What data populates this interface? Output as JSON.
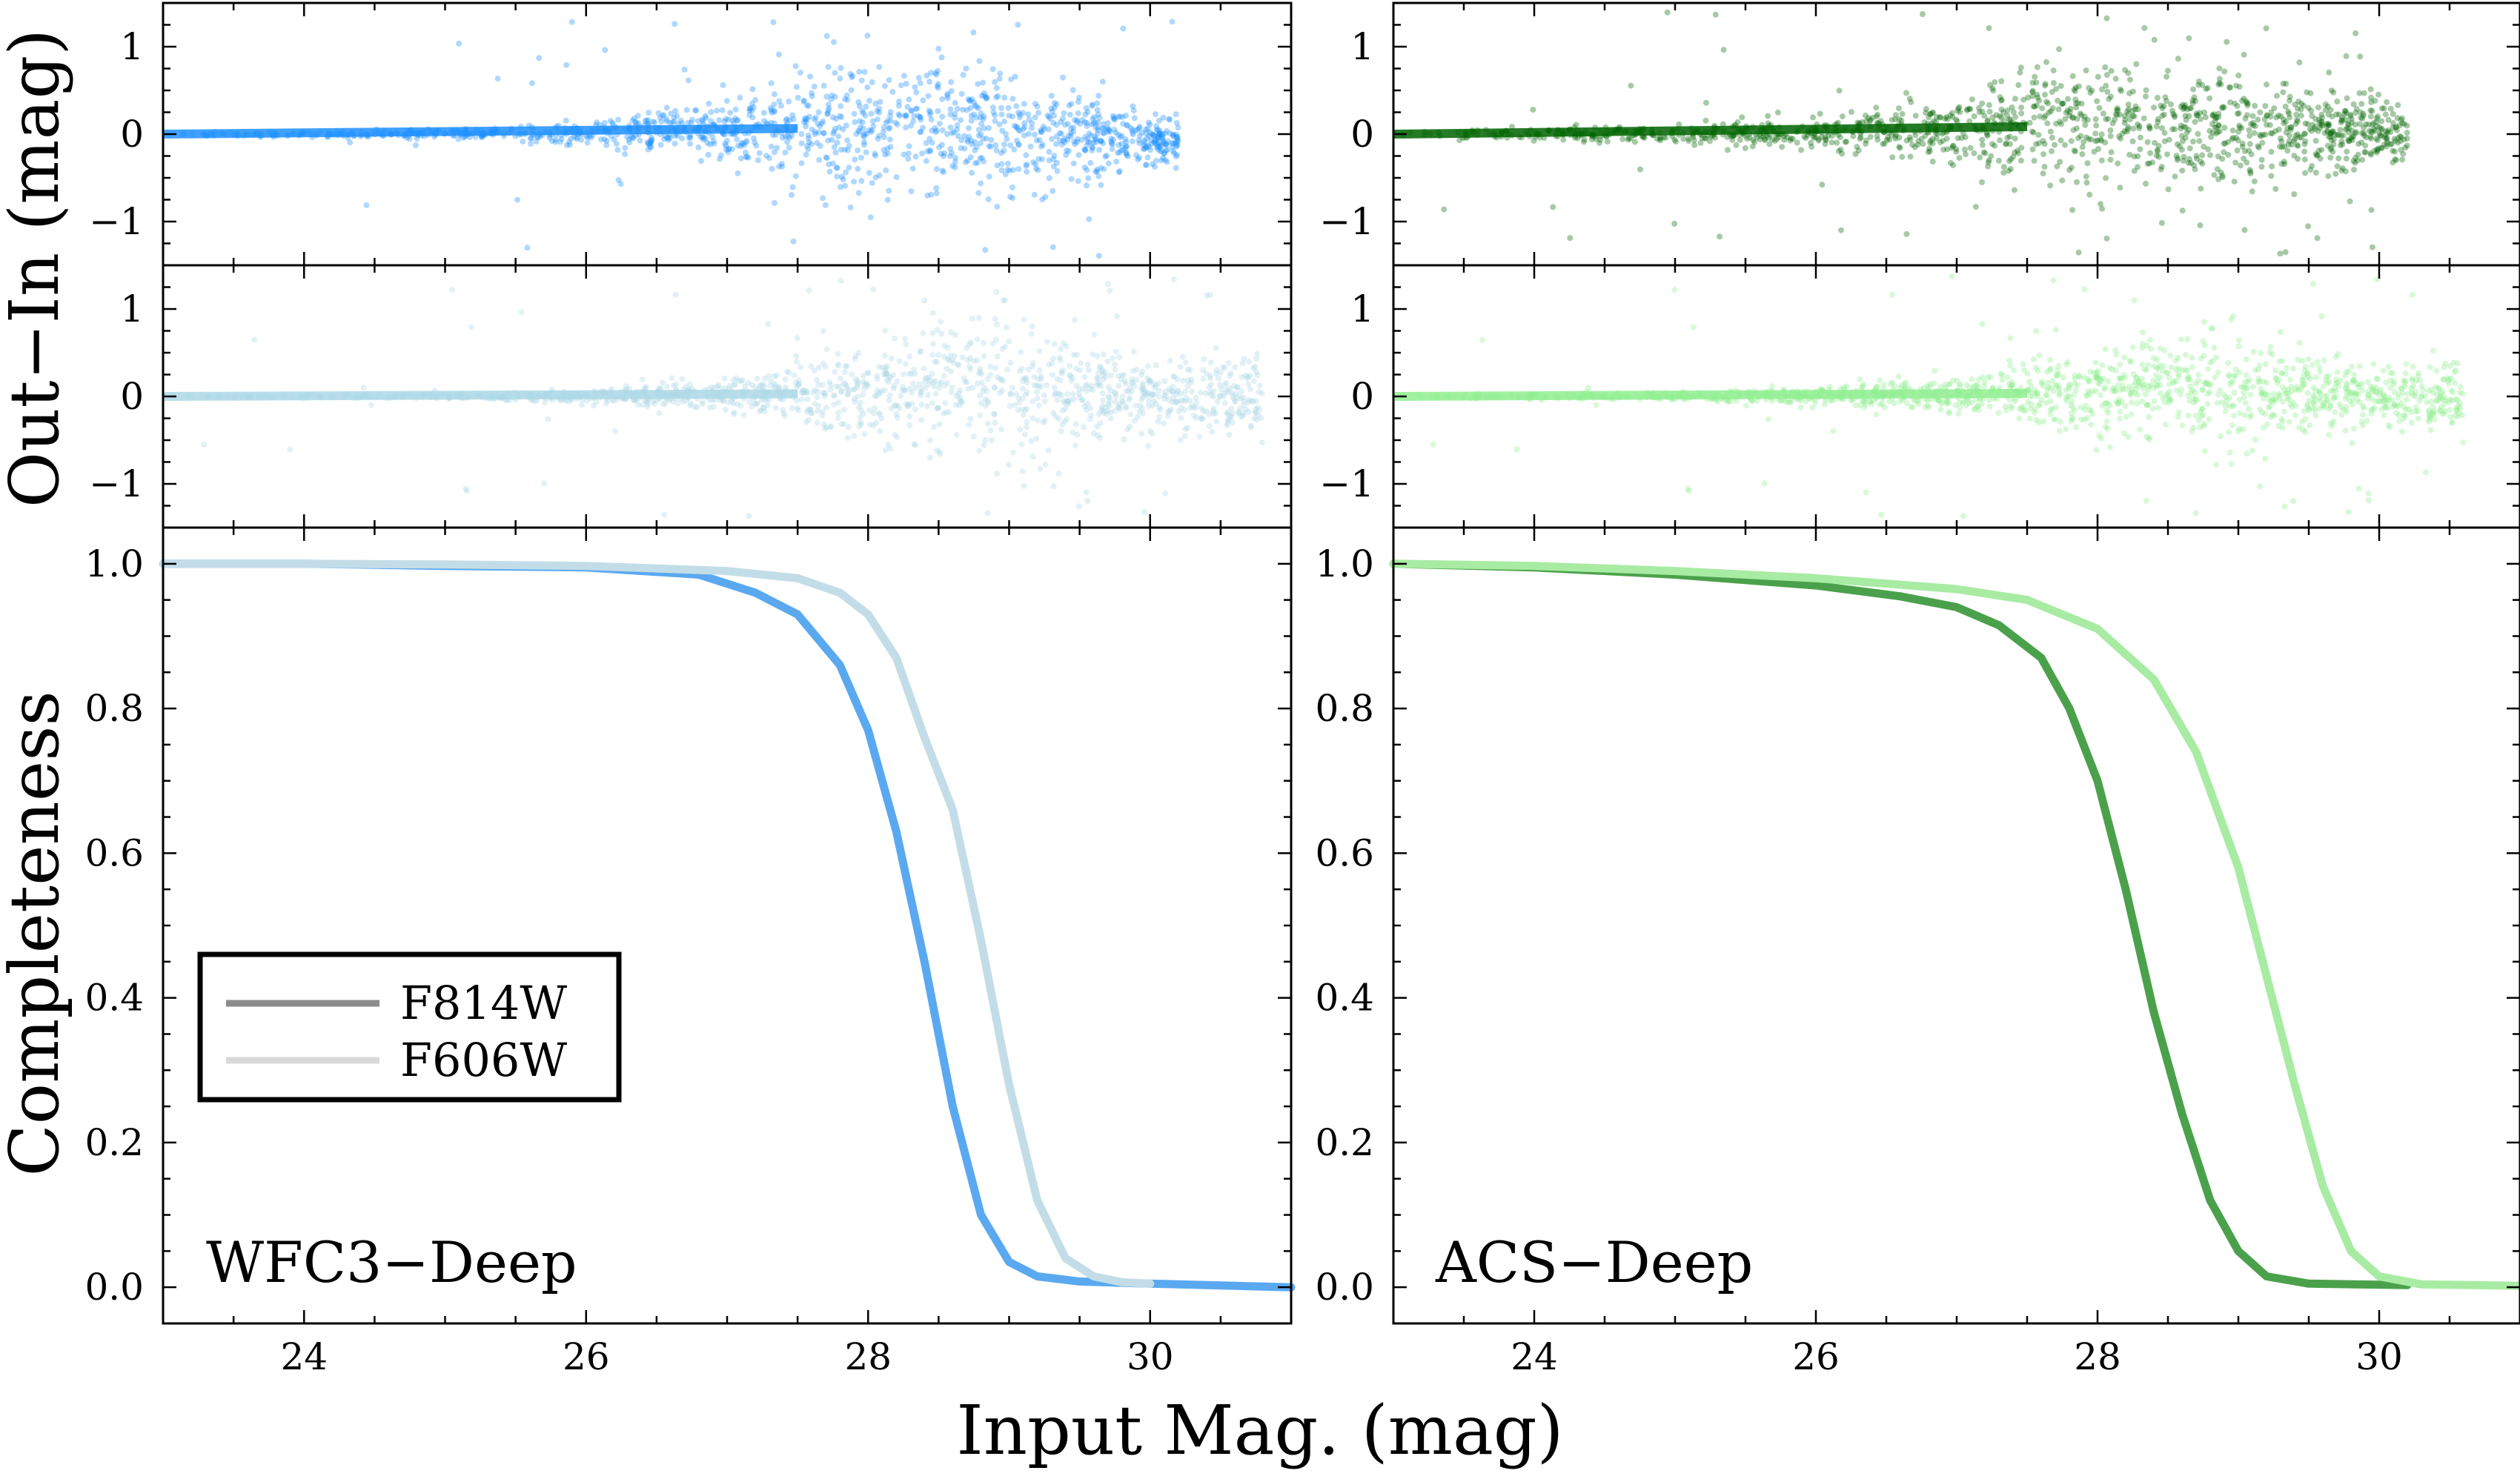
{
  "figure": {
    "xlabel": "Input Mag. (mag)",
    "ylabel_residual": "Out−In (mag)",
    "ylabel_completeness": "Completeness"
  },
  "legend": {
    "entries": [
      {
        "label": "F814W",
        "color": "#8c8c8c"
      },
      {
        "label": "F606W",
        "color": "#d9d9d9"
      }
    ]
  },
  "chart_data": [
    {
      "id": "wfc3-f814w-residual",
      "type": "scatter",
      "panel": "WFC3−Deep",
      "filter": "F814W",
      "color": "#1e90ff",
      "xlim": [
        23,
        31
      ],
      "ylim": [
        -1.5,
        1.5
      ],
      "yticks": [
        -1,
        0,
        1
      ],
      "xlabel": "Input Mag. (mag)",
      "ylabel": "Out−In (mag)",
      "envelope": {
        "x": [
          23,
          24,
          25,
          26,
          27,
          28,
          29,
          30
        ],
        "spread": [
          0.02,
          0.03,
          0.05,
          0.12,
          0.3,
          0.75,
          0.6,
          0.25
        ],
        "bias": [
          0,
          0,
          0,
          0.01,
          0.03,
          0.1,
          0.05,
          -0.1
        ]
      },
      "xmax_points": 30.2
    },
    {
      "id": "wfc3-f606w-residual",
      "type": "scatter",
      "panel": "WFC3−Deep",
      "filter": "F606W",
      "color": "#add8e6",
      "xlim": [
        23,
        31
      ],
      "ylim": [
        -1.5,
        1.5
      ],
      "yticks": [
        -1,
        0,
        1
      ],
      "xlabel": "Input Mag. (mag)",
      "ylabel": "Out−In (mag)",
      "envelope": {
        "x": [
          23,
          24,
          25,
          26,
          27,
          28,
          29,
          30
        ],
        "spread": [
          0.01,
          0.02,
          0.03,
          0.07,
          0.18,
          0.45,
          0.75,
          0.4
        ],
        "bias": [
          0,
          0,
          0,
          0,
          0.01,
          0.05,
          0.08,
          0
        ]
      },
      "xmax_points": 30.8
    },
    {
      "id": "acs-f814w-residual",
      "type": "scatter",
      "panel": "ACS−Deep",
      "filter": "F814W",
      "color": "#006400",
      "xlim": [
        23,
        31
      ],
      "ylim": [
        -1.5,
        1.5
      ],
      "yticks": [
        -1,
        0,
        1
      ],
      "xlabel": "Input Mag. (mag)",
      "ylabel": "Out−In (mag)",
      "envelope": {
        "x": [
          23,
          24,
          25,
          26,
          27,
          28,
          29,
          30
        ],
        "spread": [
          0.04,
          0.06,
          0.1,
          0.18,
          0.35,
          0.7,
          0.6,
          0.3
        ],
        "bias": [
          0,
          0,
          0,
          0.02,
          0.05,
          0.12,
          0.08,
          0
        ]
      },
      "xmax_points": 30.2
    },
    {
      "id": "acs-f606w-residual",
      "type": "scatter",
      "panel": "ACS−Deep",
      "filter": "F606W",
      "color": "#90ee90",
      "xlim": [
        23,
        31
      ],
      "ylim": [
        -1.5,
        1.5
      ],
      "yticks": [
        -1,
        0,
        1
      ],
      "xlabel": "Input Mag. (mag)",
      "ylabel": "Out−In (mag)",
      "envelope": {
        "x": [
          23,
          24,
          25,
          26,
          27,
          28,
          29,
          30
        ],
        "spread": [
          0.02,
          0.03,
          0.05,
          0.1,
          0.2,
          0.4,
          0.55,
          0.35
        ],
        "bias": [
          0,
          0,
          0,
          0.01,
          0.02,
          0.05,
          0.06,
          0
        ]
      },
      "xmax_points": 30.6
    },
    {
      "id": "wfc3-completeness",
      "type": "line",
      "panel": "WFC3−Deep",
      "xlabel": "Input Mag. (mag)",
      "ylabel": "Completeness",
      "xlim": [
        23,
        31
      ],
      "ylim": [
        -0.05,
        1.05
      ],
      "xticks": [
        24,
        26,
        28,
        30
      ],
      "yticks": [
        0.0,
        0.2,
        0.4,
        0.6,
        0.8,
        1.0
      ],
      "series": [
        {
          "name": "F814W",
          "color": "#5aa9f0",
          "x": [
            23.0,
            24.0,
            25.0,
            26.0,
            26.8,
            27.2,
            27.5,
            27.8,
            28.0,
            28.2,
            28.4,
            28.6,
            28.8,
            29.0,
            29.2,
            29.5,
            30.0,
            31.0
          ],
          "y": [
            1.0,
            1.0,
            0.997,
            0.995,
            0.985,
            0.96,
            0.93,
            0.86,
            0.77,
            0.63,
            0.45,
            0.25,
            0.1,
            0.035,
            0.015,
            0.008,
            0.005,
            0.0
          ]
        },
        {
          "name": "F606W",
          "color": "#c3dde8",
          "x": [
            23.0,
            24.0,
            25.0,
            26.0,
            27.0,
            27.5,
            27.8,
            28.0,
            28.2,
            28.4,
            28.6,
            28.8,
            29.0,
            29.2,
            29.4,
            29.6,
            29.8,
            30.0
          ],
          "y": [
            1.0,
            1.0,
            0.999,
            0.997,
            0.99,
            0.98,
            0.96,
            0.93,
            0.87,
            0.76,
            0.66,
            0.48,
            0.28,
            0.12,
            0.04,
            0.015,
            0.007,
            0.005
          ]
        }
      ],
      "annotation": "WFC3−Deep"
    },
    {
      "id": "acs-completeness",
      "type": "line",
      "panel": "ACS−Deep",
      "xlabel": "Input Mag. (mag)",
      "ylabel": "Completeness",
      "xlim": [
        23,
        31
      ],
      "ylim": [
        -0.05,
        1.05
      ],
      "xticks": [
        24,
        26,
        28,
        30
      ],
      "yticks": [
        0.0,
        0.2,
        0.4,
        0.6,
        0.8,
        1.0
      ],
      "series": [
        {
          "name": "F814W",
          "color": "#4ba14b",
          "x": [
            23.0,
            24.0,
            25.0,
            26.0,
            26.6,
            27.0,
            27.3,
            27.6,
            27.8,
            28.0,
            28.2,
            28.4,
            28.6,
            28.8,
            29.0,
            29.2,
            29.5,
            30.2
          ],
          "y": [
            1.0,
            0.995,
            0.985,
            0.97,
            0.955,
            0.94,
            0.915,
            0.87,
            0.8,
            0.7,
            0.55,
            0.38,
            0.24,
            0.12,
            0.05,
            0.015,
            0.005,
            0.003
          ]
        },
        {
          "name": "F606W",
          "color": "#a8eba3",
          "x": [
            23.0,
            24.0,
            25.0,
            26.0,
            27.0,
            27.5,
            28.0,
            28.4,
            28.7,
            29.0,
            29.2,
            29.4,
            29.6,
            29.8,
            30.0,
            30.3,
            31.0
          ],
          "y": [
            1.0,
            0.997,
            0.99,
            0.98,
            0.965,
            0.95,
            0.91,
            0.84,
            0.74,
            0.58,
            0.43,
            0.28,
            0.14,
            0.05,
            0.015,
            0.004,
            0.002
          ]
        }
      ],
      "annotation": "ACS−Deep"
    }
  ]
}
